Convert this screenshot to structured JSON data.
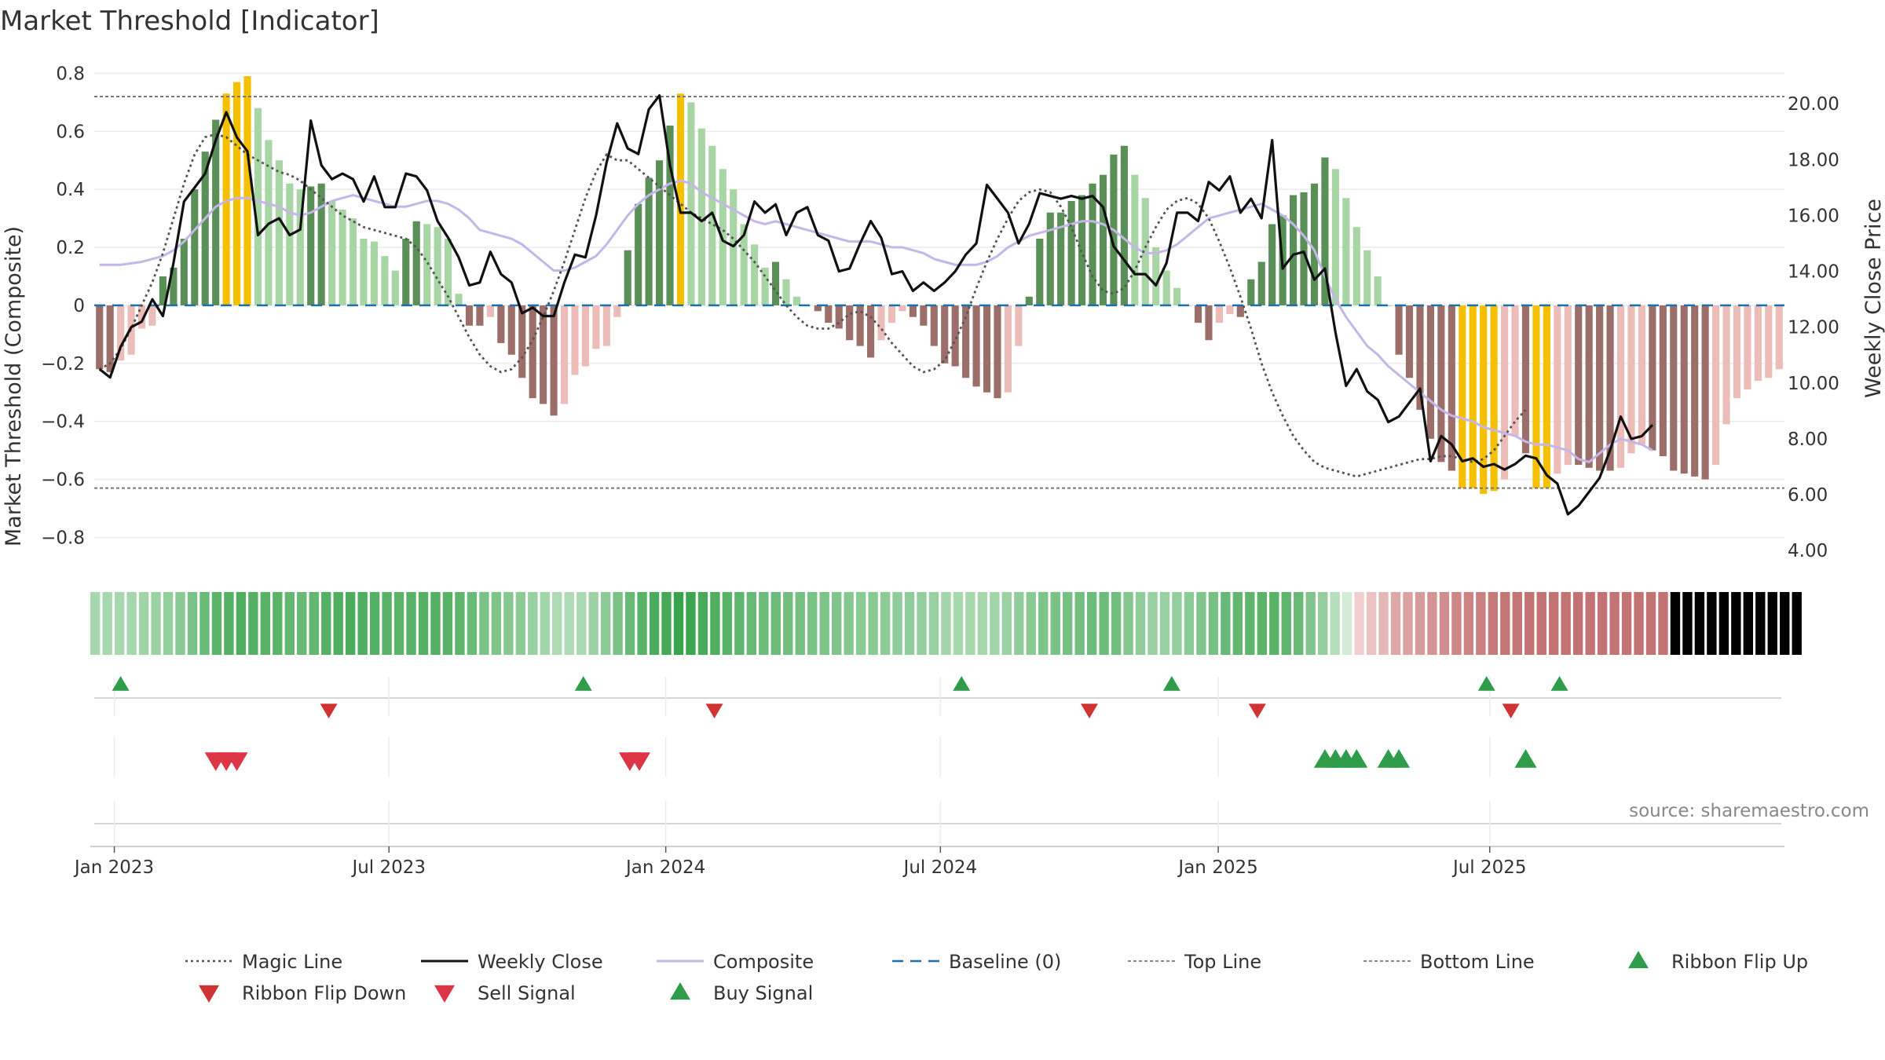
{
  "chart_data": {
    "type": "bar",
    "title": "Market Threshold [Indicator]",
    "ylabel_left": "Market Threshold (Composite)",
    "ylabel_right": "Weekly Close Price",
    "ylim_left": [
      -0.88,
      0.82
    ],
    "ylim_right": [
      3.64,
      21.3
    ],
    "left_ticks": [
      {
        "v": 0.8,
        "label": "0.8"
      },
      {
        "v": 0.6,
        "label": "0.6"
      },
      {
        "v": 0.4,
        "label": "0.4"
      },
      {
        "v": 0.2,
        "label": "0.2"
      },
      {
        "v": 0,
        "label": "0"
      },
      {
        "v": -0.2,
        "label": "−0.2"
      },
      {
        "v": -0.4,
        "label": "−0.4"
      },
      {
        "v": -0.6,
        "label": "−0.6"
      },
      {
        "v": -0.8,
        "label": "−0.8"
      }
    ],
    "right_ticks": [
      {
        "v": 20,
        "label": "20.00"
      },
      {
        "v": 18,
        "label": "18.00"
      },
      {
        "v": 16,
        "label": "16.00"
      },
      {
        "v": 14,
        "label": "14.00"
      },
      {
        "v": 12,
        "label": "12.00"
      },
      {
        "v": 10,
        "label": "10.00"
      },
      {
        "v": 8,
        "label": "8.00"
      },
      {
        "v": 6,
        "label": "6.00"
      },
      {
        "v": 4,
        "label": "4.00"
      }
    ],
    "x_ticks": [
      {
        "i": 1.4,
        "label": "Jan 2023"
      },
      {
        "i": 27.4,
        "label": "Jul 2023"
      },
      {
        "i": 53.6,
        "label": "Jan 2024"
      },
      {
        "i": 79.6,
        "label": "Jul 2024"
      },
      {
        "i": 105.9,
        "label": "Jan 2025"
      },
      {
        "i": 131.6,
        "label": "Jul 2025"
      }
    ],
    "top_line": 0.72,
    "bottom_line": -0.63,
    "baseline": 0,
    "composite_bars": [
      -0.22,
      -0.23,
      -0.19,
      -0.17,
      -0.08,
      -0.07,
      0.1,
      0.13,
      0.23,
      0.4,
      0.53,
      0.64,
      0.73,
      0.77,
      0.79,
      0.68,
      0.57,
      0.5,
      0.42,
      0.4,
      0.41,
      0.42,
      0.36,
      0.33,
      0.3,
      0.23,
      0.22,
      0.17,
      0.12,
      0.23,
      0.29,
      0.28,
      0.27,
      0.23,
      0.04,
      -0.07,
      -0.07,
      -0.04,
      -0.13,
      -0.17,
      -0.25,
      -0.32,
      -0.34,
      -0.38,
      -0.34,
      -0.24,
      -0.21,
      -0.15,
      -0.14,
      -0.04,
      0.19,
      0.35,
      0.44,
      0.5,
      0.62,
      0.73,
      0.7,
      0.61,
      0.55,
      0.47,
      0.4,
      0.28,
      0.21,
      0.13,
      0.15,
      0.09,
      0.03,
      0,
      -0.02,
      -0.06,
      -0.08,
      -0.12,
      -0.14,
      -0.18,
      -0.12,
      -0.06,
      -0.02,
      -0.04,
      -0.07,
      -0.14,
      -0.2,
      -0.21,
      -0.25,
      -0.28,
      -0.3,
      -0.32,
      -0.3,
      -0.14,
      0.03,
      0.23,
      0.32,
      0.32,
      0.36,
      0.38,
      0.42,
      0.45,
      0.52,
      0.55,
      0.45,
      0.37,
      0.2,
      0.12,
      0.06,
      0,
      -0.06,
      -0.12,
      -0.06,
      -0.03,
      -0.04,
      0.09,
      0.15,
      0.28,
      0.31,
      0.38,
      0.39,
      0.42,
      0.51,
      0.47,
      0.37,
      0.27,
      0.19,
      0.1,
      0,
      -0.17,
      -0.25,
      -0.36,
      -0.46,
      -0.54,
      -0.57,
      -0.63,
      -0.63,
      -0.65,
      -0.64,
      -0.6,
      -0.45,
      -0.51,
      -0.63,
      -0.63,
      -0.58,
      -0.55,
      -0.55,
      -0.56,
      -0.57,
      -0.57,
      -0.56,
      -0.51,
      -0.48,
      -0.5,
      -0.52,
      -0.57,
      -0.58,
      -0.59,
      -0.6,
      -0.55,
      -0.41,
      -0.32,
      -0.29,
      -0.26,
      -0.25,
      -0.22
    ],
    "weekly_close": [
      10.5,
      10.2,
      11.3,
      12,
      12.2,
      13,
      12.4,
      14.3,
      16.5,
      17,
      17.5,
      18.7,
      19.7,
      18.8,
      18.3,
      15.3,
      15.7,
      15.9,
      15.3,
      15.5,
      19.4,
      17.8,
      17.3,
      17.5,
      17.3,
      16.5,
      17.4,
      16.3,
      16.3,
      17.5,
      17.4,
      16.9,
      15.8,
      15.2,
      14.5,
      13.5,
      13.6,
      14.7,
      13.9,
      13.6,
      12.5,
      12.7,
      12.4,
      12.4,
      13.6,
      14.6,
      14.5,
      16,
      17.9,
      19.3,
      18.4,
      18.2,
      19.8,
      20.3,
      17.8,
      16.1,
      16.1,
      15.8,
      16.1,
      15.1,
      14.9,
      15.3,
      16.5,
      16.1,
      16.4,
      15.3,
      16.1,
      16.3,
      15.3,
      15.1,
      14,
      14.1,
      15,
      15.8,
      15.2,
      13.9,
      14,
      13.3,
      13.6,
      13.3,
      13.6,
      14,
      14.6,
      15,
      17.1,
      16.6,
      16.1,
      15,
      15.7,
      16.8,
      16.7,
      16.6,
      16.7,
      16.6,
      16.7,
      16.3,
      14.9,
      14.4,
      13.9,
      13.9,
      13.5,
      14.3,
      16.1,
      16.1,
      15.8,
      17.2,
      16.9,
      17.4,
      16.1,
      16.6,
      15.9,
      18.7,
      14.1,
      14.6,
      14.7,
      13.7,
      14.1,
      11.8,
      9.9,
      10.5,
      9.7,
      9.4,
      8.6,
      8.8,
      9.3,
      9.8,
      7.2,
      8.1,
      7.8,
      7.2,
      7.3,
      7,
      7.1,
      6.9,
      7.1,
      7.4,
      7.3,
      6.7,
      6.4,
      5.3,
      5.6,
      6.1,
      6.6,
      7.6,
      8.8,
      8,
      8.1,
      8.5
    ],
    "composite_line": [
      0.14,
      0.14,
      0.14,
      0.145,
      0.15,
      0.16,
      0.17,
      0.19,
      0.22,
      0.26,
      0.3,
      0.34,
      0.36,
      0.37,
      0.37,
      0.36,
      0.35,
      0.34,
      0.32,
      0.31,
      0.32,
      0.34,
      0.36,
      0.37,
      0.38,
      0.37,
      0.36,
      0.35,
      0.34,
      0.34,
      0.35,
      0.36,
      0.36,
      0.35,
      0.33,
      0.3,
      0.26,
      0.25,
      0.24,
      0.23,
      0.21,
      0.18,
      0.15,
      0.12,
      0.12,
      0.13,
      0.15,
      0.17,
      0.21,
      0.26,
      0.31,
      0.35,
      0.38,
      0.4,
      0.42,
      0.43,
      0.42,
      0.39,
      0.37,
      0.35,
      0.33,
      0.31,
      0.29,
      0.28,
      0.29,
      0.28,
      0.27,
      0.26,
      0.25,
      0.24,
      0.23,
      0.22,
      0.22,
      0.22,
      0.21,
      0.2,
      0.2,
      0.19,
      0.18,
      0.16,
      0.15,
      0.14,
      0.14,
      0.14,
      0.15,
      0.17,
      0.2,
      0.22,
      0.24,
      0.25,
      0.26,
      0.27,
      0.28,
      0.29,
      0.29,
      0.28,
      0.26,
      0.23,
      0.2,
      0.18,
      0.18,
      0.19,
      0.21,
      0.24,
      0.27,
      0.3,
      0.31,
      0.32,
      0.33,
      0.34,
      0.35,
      0.33,
      0.31,
      0.28,
      0.24,
      0.19,
      0.1,
      0.02,
      -0.04,
      -0.09,
      -0.14,
      -0.17,
      -0.21,
      -0.24,
      -0.27,
      -0.3,
      -0.33,
      -0.36,
      -0.38,
      -0.39,
      -0.4,
      -0.42,
      -0.43,
      -0.44,
      -0.45,
      -0.47,
      -0.48,
      -0.48,
      -0.49,
      -0.5,
      -0.53,
      -0.54,
      -0.51,
      -0.48,
      -0.46,
      -0.47,
      -0.48,
      -0.5
    ],
    "magic_line": [
      -0.22,
      -0.2,
      -0.15,
      -0.08,
      0,
      0.08,
      0.18,
      0.3,
      0.42,
      0.52,
      0.58,
      0.59,
      0.58,
      0.55,
      0.52,
      0.5,
      0.48,
      0.46,
      0.45,
      0.43,
      0.4,
      0.37,
      0.34,
      0.31,
      0.29,
      0.27,
      0.26,
      0.25,
      0.24,
      0.23,
      0.2,
      0.15,
      0.09,
      0.03,
      -0.04,
      -0.11,
      -0.17,
      -0.21,
      -0.23,
      -0.22,
      -0.18,
      -0.12,
      -0.04,
      0.05,
      0.15,
      0.26,
      0.37,
      0.46,
      0.52,
      0.5,
      0.5,
      0.47,
      0.44,
      0.41,
      0.38,
      0.35,
      0.32,
      0.3,
      0.28,
      0.26,
      0.23,
      0.19,
      0.15,
      0.1,
      0.05,
      0,
      -0.04,
      -0.07,
      -0.08,
      -0.08,
      -0.06,
      -0.03,
      -0.02,
      -0.04,
      -0.08,
      -0.13,
      -0.17,
      -0.21,
      -0.23,
      -0.22,
      -0.19,
      -0.12,
      -0.04,
      0.06,
      0.15,
      0.23,
      0.3,
      0.36,
      0.39,
      0.4,
      0.39,
      0.34,
      0.27,
      0.18,
      0.1,
      0.05,
      0.04,
      0.06,
      0.12,
      0.2,
      0.27,
      0.33,
      0.36,
      0.37,
      0.35,
      0.3,
      0.22,
      0.13,
      0.03,
      -0.08,
      -0.2,
      -0.3,
      -0.38,
      -0.45,
      -0.5,
      -0.54,
      -0.56,
      -0.57,
      -0.58,
      -0.59,
      -0.58,
      -0.57,
      -0.56,
      -0.55,
      -0.54,
      -0.53,
      -0.53,
      -0.52,
      -0.52,
      -0.53,
      -0.54,
      -0.53,
      -0.5,
      -0.45,
      -0.4,
      -0.36
    ],
    "ribbon_cell_count": 141,
    "signals": [
      {
        "name": "Ribbon Flip Up",
        "color": "#2e9c48",
        "dir": "up",
        "row": 0,
        "positions": [
          2,
          45.8,
          81.6,
          101.5,
          131.3,
          138.2
        ]
      },
      {
        "name": "Ribbon Flip Down",
        "color": "#cf3333",
        "dir": "down",
        "row": 1,
        "positions": [
          21.7,
          58.2,
          93.7,
          109.6,
          133.6
        ]
      },
      {
        "name": "Sell Signal",
        "color": "#dc3545",
        "dir": "down",
        "row": 2,
        "positions": [
          11,
          12,
          13,
          50.2,
          51.1
        ]
      },
      {
        "name": "Buy Signal",
        "color": "#2e9c48",
        "dir": "up",
        "row": 2,
        "positions": [
          116,
          117,
          118,
          119,
          122,
          123,
          135
        ]
      }
    ],
    "legend": [
      {
        "label": "Magic Line",
        "kind": "line",
        "color": "#555555",
        "dash": "3,4",
        "width": 2.5
      },
      {
        "label": "Weekly Close",
        "kind": "line",
        "color": "#111111",
        "dash": "",
        "width": 3
      },
      {
        "label": "Composite",
        "kind": "line",
        "color": "#c5b6e8",
        "dash": "",
        "width": 3
      },
      {
        "label": "Baseline (0)",
        "kind": "line",
        "color": "#1f6fa8",
        "dash": "14,9",
        "width": 2.5
      },
      {
        "label": "Top Line",
        "kind": "line",
        "color": "#888888",
        "dash": "4,3",
        "width": 2
      },
      {
        "label": "Bottom Line",
        "kind": "line",
        "color": "#888888",
        "dash": "4,3",
        "width": 2
      },
      {
        "label": "Ribbon Flip Up",
        "kind": "up",
        "color": "#2e9c48"
      },
      {
        "label": "Ribbon Flip Down",
        "kind": "down",
        "color": "#cf3333"
      },
      {
        "label": "Sell Signal",
        "kind": "down",
        "color": "#dc3545"
      },
      {
        "label": "Buy Signal",
        "kind": "up",
        "color": "#2e9c48"
      }
    ],
    "source": "source: sharemaestro.com"
  }
}
